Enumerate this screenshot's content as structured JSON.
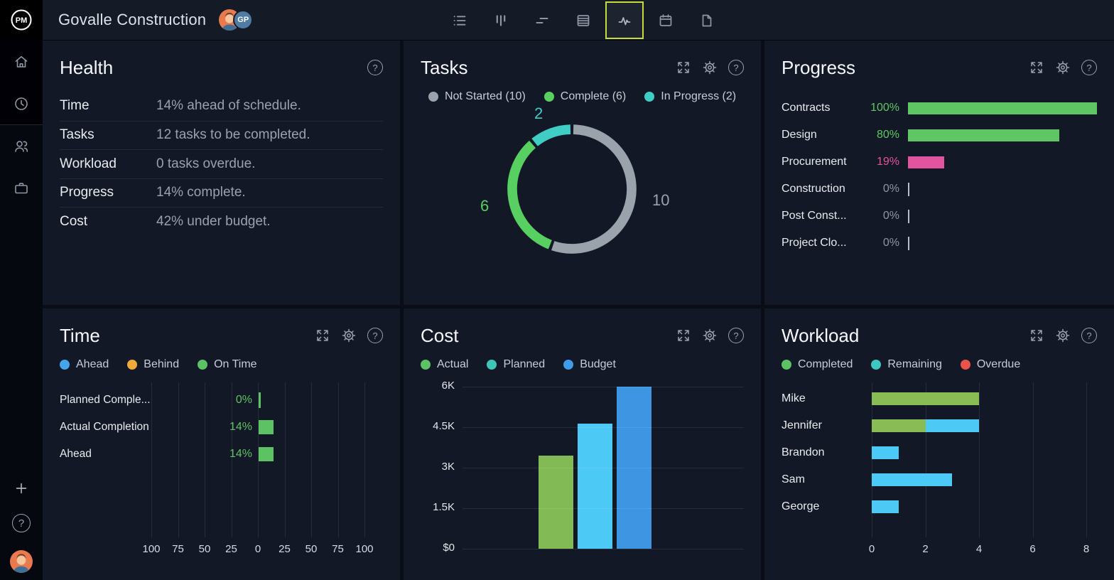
{
  "topbar": {
    "logo": "PM",
    "title": "Govalle Construction",
    "avatar_badge": "GP",
    "nav_icons": [
      "list",
      "board",
      "gantt",
      "sheet",
      "activity",
      "calendar",
      "page"
    ],
    "active_nav_icon": "activity"
  },
  "sidebar": {
    "icons": [
      "home",
      "clock",
      "team",
      "portfolio"
    ],
    "footer_icons": [
      "add",
      "help",
      "profile-avatar"
    ]
  },
  "panels": {
    "health": {
      "title": "Health",
      "header_icons": [
        "help"
      ],
      "rows": [
        {
          "label": "Time",
          "value": "14% ahead of schedule."
        },
        {
          "label": "Tasks",
          "value": "12 tasks to be completed."
        },
        {
          "label": "Workload",
          "value": "0 tasks overdue."
        },
        {
          "label": "Progress",
          "value": "14% complete."
        },
        {
          "label": "Cost",
          "value": "42% under budget."
        }
      ]
    },
    "tasks": {
      "title": "Tasks",
      "header_icons": [
        "expand",
        "settings",
        "help"
      ],
      "legend": [
        {
          "label": "Not Started (10)",
          "color": "#9aa2ac"
        },
        {
          "label": "Complete (6)",
          "color": "#57cf61"
        },
        {
          "label": "In Progress (2)",
          "color": "#3fcdc5"
        }
      ],
      "chart_data": {
        "type": "donut",
        "segments": [
          {
            "name": "Not Started",
            "value": 10,
            "color": "#9aa2ac"
          },
          {
            "name": "Complete",
            "value": 6,
            "color": "#57cf61"
          },
          {
            "name": "In Progress",
            "value": 2,
            "color": "#3fcdc5"
          }
        ],
        "value_labels": {
          "top": "2",
          "left": "6",
          "right": "10"
        }
      }
    },
    "progress": {
      "title": "Progress",
      "header_icons": [
        "expand",
        "settings",
        "help"
      ],
      "chart_data": {
        "type": "bar-horizontal",
        "categories": [
          "Contracts",
          "Design",
          "Procurement",
          "Construction",
          "Post Const...",
          "Project Clo..."
        ],
        "values": [
          100,
          80,
          19,
          0,
          0,
          0
        ],
        "value_labels": [
          "100%",
          "80%",
          "19%",
          "0%",
          "0%",
          "0%"
        ],
        "bar_colors": [
          "#5ec764",
          "#5ec764",
          "#e1549e",
          "",
          "",
          ""
        ],
        "label_colors": [
          "#5ec764",
          "#5ec764",
          "#e1549e",
          "#8d95a3",
          "#8d95a3",
          "#8d95a3"
        ],
        "xlim": [
          0,
          100
        ]
      }
    },
    "time": {
      "title": "Time",
      "header_icons": [
        "expand",
        "settings",
        "help"
      ],
      "legend": [
        {
          "label": "Ahead",
          "color": "#45a4ea"
        },
        {
          "label": "Behind",
          "color": "#f2a93b"
        },
        {
          "label": "On Time",
          "color": "#5cc264"
        }
      ],
      "chart_data": {
        "type": "bar-horizontal-diverging",
        "categories": [
          "Planned Comple...",
          "Actual Completion",
          "Ahead"
        ],
        "values": [
          0,
          14,
          14
        ],
        "value_labels": [
          "0%",
          "14%",
          "14%"
        ],
        "label_color": "#5cc264",
        "bar_color": "#5cc264",
        "axis_ticks": [
          "100",
          "75",
          "50",
          "25",
          "0",
          "25",
          "50",
          "75",
          "100"
        ],
        "axis_range": [
          -100,
          100
        ]
      }
    },
    "cost": {
      "title": "Cost",
      "header_icons": [
        "expand",
        "settings",
        "help"
      ],
      "legend": [
        {
          "label": "Actual",
          "color": "#5cc264"
        },
        {
          "label": "Planned",
          "color": "#3fc6b7"
        },
        {
          "label": "Budget",
          "color": "#3e9ce8"
        }
      ],
      "chart_data": {
        "type": "bar",
        "categories": [
          "Actual",
          "Planned",
          "Budget"
        ],
        "values": [
          3450,
          4620,
          6000
        ],
        "bar_colors": [
          "#82ba55",
          "#4dc9f6",
          "#3e96e2"
        ],
        "yticks": [
          "6K",
          "4.5K",
          "3K",
          "1.5K",
          "$0"
        ],
        "ylim": [
          0,
          6000
        ]
      }
    },
    "workload": {
      "title": "Workload",
      "header_icons": [
        "expand",
        "settings",
        "help"
      ],
      "legend": [
        {
          "label": "Completed",
          "color": "#5cc264"
        },
        {
          "label": "Remaining",
          "color": "#3fc6c0"
        },
        {
          "label": "Overdue",
          "color": "#e8544b"
        }
      ],
      "chart_data": {
        "type": "stacked-bar-horizontal",
        "categories": [
          "Mike",
          "Jennifer",
          "Brandon",
          "Sam",
          "George"
        ],
        "series": [
          {
            "name": "Completed",
            "color": "#8abc56",
            "values": [
              4,
              2,
              0,
              0,
              0
            ]
          },
          {
            "name": "Remaining",
            "color": "#4dc9f6",
            "values": [
              0,
              2,
              1,
              3,
              1
            ]
          },
          {
            "name": "Overdue",
            "color": "#e8544b",
            "values": [
              0,
              0,
              0,
              0,
              0
            ]
          }
        ],
        "xticks": [
          "0",
          "2",
          "4",
          "6",
          "8"
        ],
        "xlim": [
          0,
          8
        ]
      }
    }
  }
}
